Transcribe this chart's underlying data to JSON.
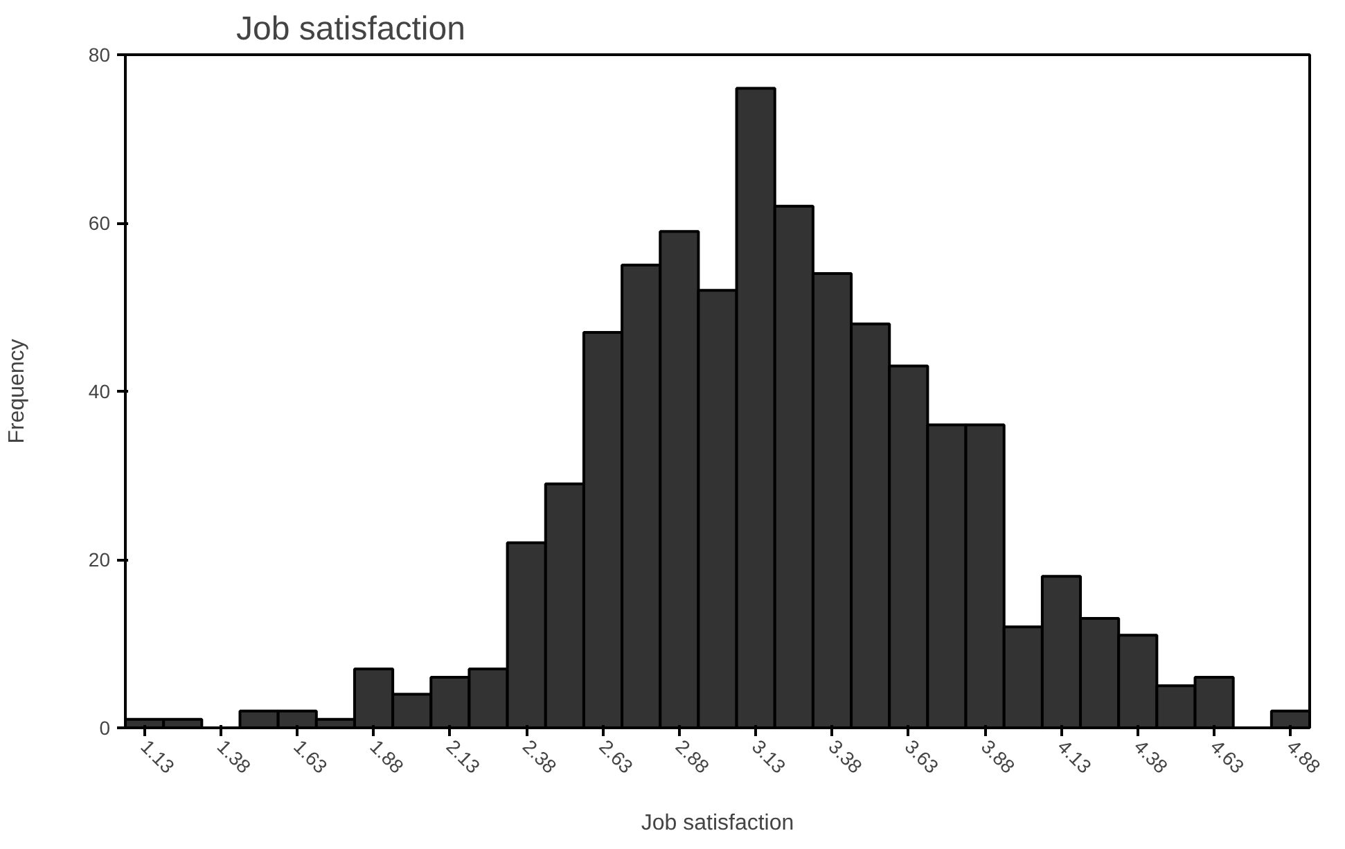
{
  "chart_data": {
    "type": "histogram",
    "title": "Job satisfaction",
    "xlabel": "Job satisfaction",
    "ylabel": "Frequency",
    "bins": [
      1.0625,
      1.1875,
      1.3125,
      1.4375,
      1.5625,
      1.6875,
      1.8125,
      1.9375,
      2.0625,
      2.1875,
      2.3125,
      2.4375,
      2.5625,
      2.6875,
      2.8125,
      2.9375,
      3.0625,
      3.1875,
      3.3125,
      3.4375,
      3.5625,
      3.6875,
      3.8125,
      3.9375,
      4.0625,
      4.1875,
      4.3125,
      4.4375,
      4.5625,
      4.6875,
      4.8125,
      4.9375
    ],
    "values": [
      1,
      1,
      0,
      2,
      2,
      1,
      7,
      4,
      6,
      7,
      22,
      29,
      47,
      55,
      59,
      52,
      76,
      62,
      54,
      48,
      43,
      36,
      36,
      12,
      18,
      13,
      11,
      5,
      6,
      0,
      2
    ],
    "color": "#333333",
    "xlim": [
      1.0625,
      4.9375
    ],
    "xticks": [
      {
        "value": 1.125,
        "label": "1.13"
      },
      {
        "value": 1.375,
        "label": "1.38"
      },
      {
        "value": 1.625,
        "label": "1.63"
      },
      {
        "value": 1.875,
        "label": "1.88"
      },
      {
        "value": 2.125,
        "label": "2.13"
      },
      {
        "value": 2.375,
        "label": "2.38"
      },
      {
        "value": 2.625,
        "label": "2.63"
      },
      {
        "value": 2.875,
        "label": "2.88"
      },
      {
        "value": 3.125,
        "label": "3.13"
      },
      {
        "value": 3.375,
        "label": "3.38"
      },
      {
        "value": 3.625,
        "label": "3.63"
      },
      {
        "value": 3.875,
        "label": "3.88"
      },
      {
        "value": 4.125,
        "label": "4.13"
      },
      {
        "value": 4.375,
        "label": "4.38"
      },
      {
        "value": 4.625,
        "label": "4.63"
      },
      {
        "value": 4.875,
        "label": "4.88"
      }
    ],
    "ylim": [
      0,
      80
    ],
    "yticks": [
      0,
      20,
      40,
      60,
      80
    ],
    "grid": false
  }
}
